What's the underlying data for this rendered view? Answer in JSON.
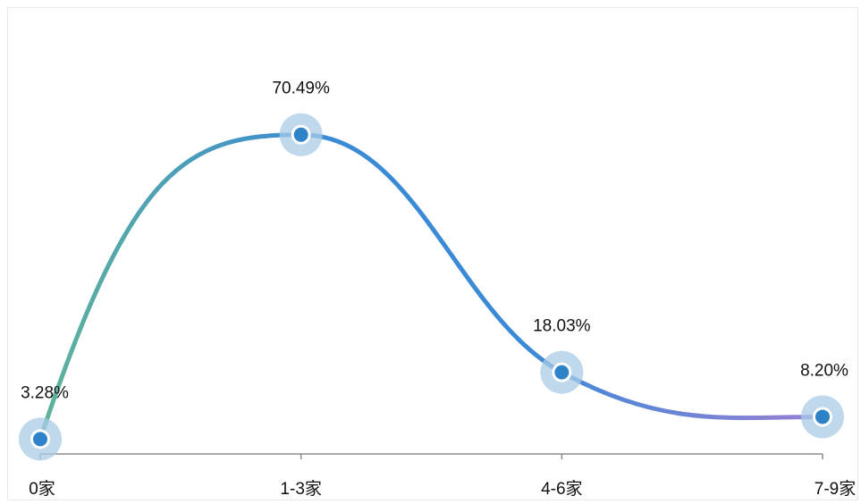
{
  "chart_data": {
    "type": "line",
    "smooth": true,
    "categories": [
      "0家",
      "1-3家",
      "4-6家",
      "7-9家"
    ],
    "series": [
      {
        "values": [
          3.28,
          70.49,
          18.03,
          8.2
        ],
        "labels": [
          "3.28%",
          "70.49%",
          "18.03%",
          "8.20%"
        ]
      }
    ],
    "title": "",
    "xlabel": "",
    "ylabel": "",
    "ylim": [
      0,
      73
    ],
    "grid": false,
    "legend": "none",
    "colors": {
      "line_start": "#5fb39a",
      "line_mid": "#3a8ad6",
      "line_end": "#9a7fd4",
      "marker_fill": "#2e82c8",
      "marker_halo": "#a9cbe6",
      "axis": "#8c8c8c"
    }
  }
}
